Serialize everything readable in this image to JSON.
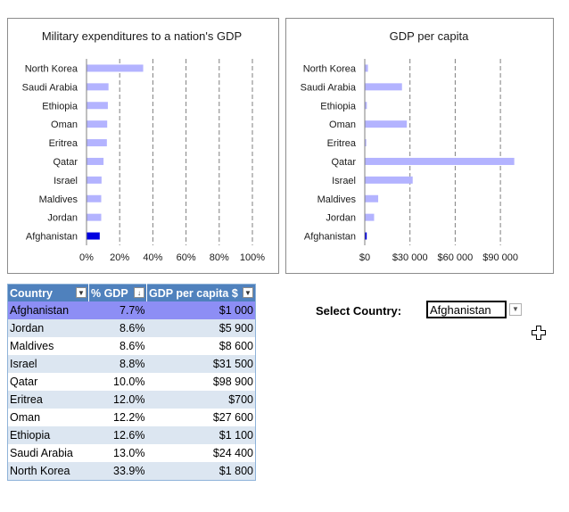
{
  "chart_data": [
    {
      "type": "bar",
      "orientation": "horizontal",
      "title": "Military expenditures to a nation's GDP",
      "categories": [
        "North Korea",
        "Saudi Arabia",
        "Ethiopia",
        "Oman",
        "Eritrea",
        "Qatar",
        "Israel",
        "Maldives",
        "Jordan",
        "Afghanistan"
      ],
      "values": [
        33.9,
        13.0,
        12.6,
        12.2,
        12.0,
        10.0,
        8.8,
        8.6,
        8.6,
        7.7
      ],
      "xlim": [
        0,
        100
      ],
      "x_ticks": [
        "0%",
        "20%",
        "40%",
        "60%",
        "80%",
        "100%"
      ],
      "gridlines": "dashed vertical",
      "highlighted": "Afghanistan"
    },
    {
      "type": "bar",
      "orientation": "horizontal",
      "title": "GDP per capita",
      "categories": [
        "North Korea",
        "Saudi Arabia",
        "Ethiopia",
        "Oman",
        "Eritrea",
        "Qatar",
        "Israel",
        "Maldives",
        "Jordan",
        "Afghanistan"
      ],
      "values": [
        1800,
        24400,
        1100,
        27600,
        700,
        98900,
        31500,
        8600,
        5900,
        1000
      ],
      "xlim": [
        0,
        100000
      ],
      "x_ticks": [
        "$0",
        "$30 000",
        "$60 000",
        "$90 000"
      ],
      "gridlines": "dashed vertical",
      "highlighted": "Afghanistan"
    }
  ],
  "colors": {
    "bar": "#b3b3ff",
    "bar_highlight": "#0000e0",
    "header_bg": "#4f81bd",
    "band_bg": "#dce6f1",
    "selected_row_bg": "#8d8ef5"
  },
  "table": {
    "headers": [
      "Country",
      "% GDP",
      "GDP per capita $"
    ],
    "rows": [
      {
        "country": "Afghanistan",
        "pct": "7.7%",
        "gdp": "$1 000"
      },
      {
        "country": "Jordan",
        "pct": "8.6%",
        "gdp": "$5 900"
      },
      {
        "country": "Maldives",
        "pct": "8.6%",
        "gdp": "$8 600"
      },
      {
        "country": "Israel",
        "pct": "8.8%",
        "gdp": "$31 500"
      },
      {
        "country": "Qatar",
        "pct": "10.0%",
        "gdp": "$98 900"
      },
      {
        "country": "Eritrea",
        "pct": "12.0%",
        "gdp": "$700"
      },
      {
        "country": "Oman",
        "pct": "12.2%",
        "gdp": "$27 600"
      },
      {
        "country": "Ethiopia",
        "pct": "12.6%",
        "gdp": "$1 100"
      },
      {
        "country": "Saudi Arabia",
        "pct": "13.0%",
        "gdp": "$24 400"
      },
      {
        "country": "North Korea",
        "pct": "33.9%",
        "gdp": "$1 800"
      }
    ],
    "selected_index": 0
  },
  "selector": {
    "label": "Select Country:",
    "value": "Afghanistan",
    "dropdown_icon": "chevron-down-icon"
  },
  "cursor_icon": "crosshair-cursor-icon"
}
